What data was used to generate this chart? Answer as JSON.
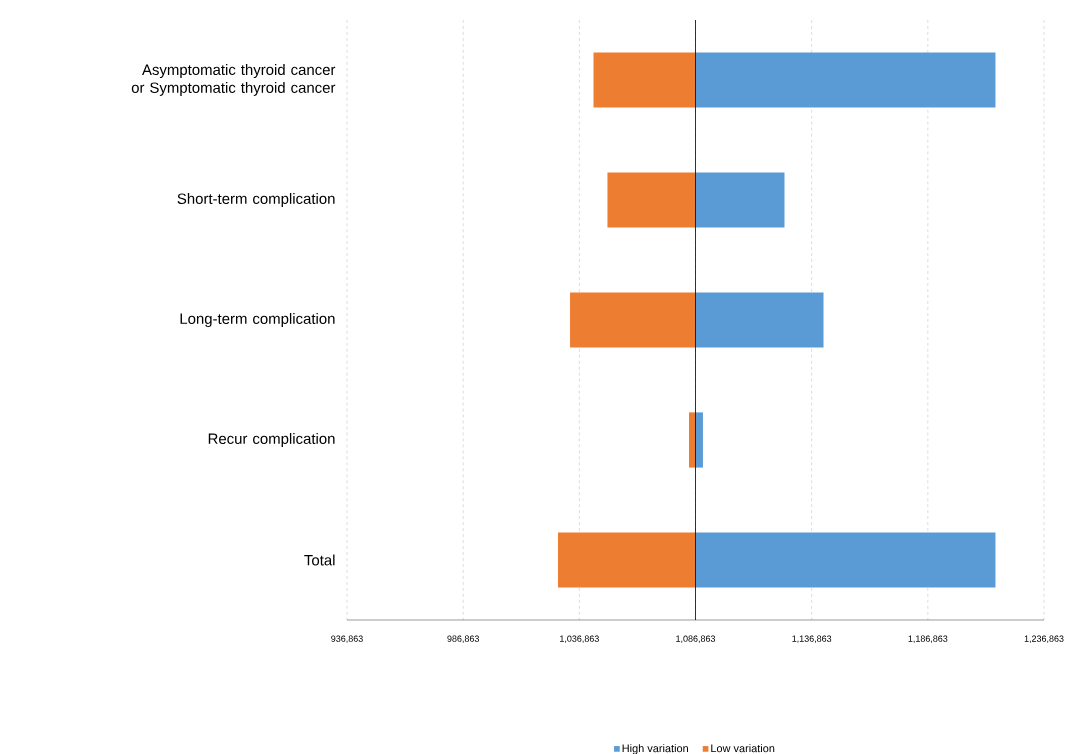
{
  "chart_data": {
    "type": "bar",
    "orientation": "horizontal",
    "categories": [
      "Asymptomatic thyroid cancer or Symptomatic thyroid cancer",
      "Short-term complication",
      "Long-term complication",
      "Recur complication",
      "Total"
    ],
    "series": [
      {
        "name": "High variation",
        "color": "#5b9bd5",
        "base": [
          1086863,
          1086863,
          1086863,
          1086863,
          1086863
        ],
        "values": [
          129100,
          38300,
          55100,
          3200,
          129100
        ]
      },
      {
        "name": "Low variation",
        "color": "#ed7d31",
        "base": [
          1086863,
          1086863,
          1086863,
          1086863,
          1086863
        ],
        "values": [
          -43900,
          -37900,
          -54000,
          -2800,
          -59200
        ]
      }
    ],
    "xlim": [
      936863,
      1236863
    ],
    "xticks": [
      {
        "value": 936863,
        "label": "936,863"
      },
      {
        "value": 986863,
        "label": "986,863"
      },
      {
        "value": 1036863,
        "label": "1,036,863"
      },
      {
        "value": 1086863,
        "label": "1,086,863"
      },
      {
        "value": 1136863,
        "label": "1,136,863"
      },
      {
        "value": 1186863,
        "label": "1,186,863"
      },
      {
        "value": 1236863,
        "label": "1,236,863"
      }
    ],
    "grid": "x",
    "legend": "bottom",
    "ref_lines": [
      {
        "axis": "x",
        "value": 1086863,
        "color": "#000000"
      }
    ]
  }
}
